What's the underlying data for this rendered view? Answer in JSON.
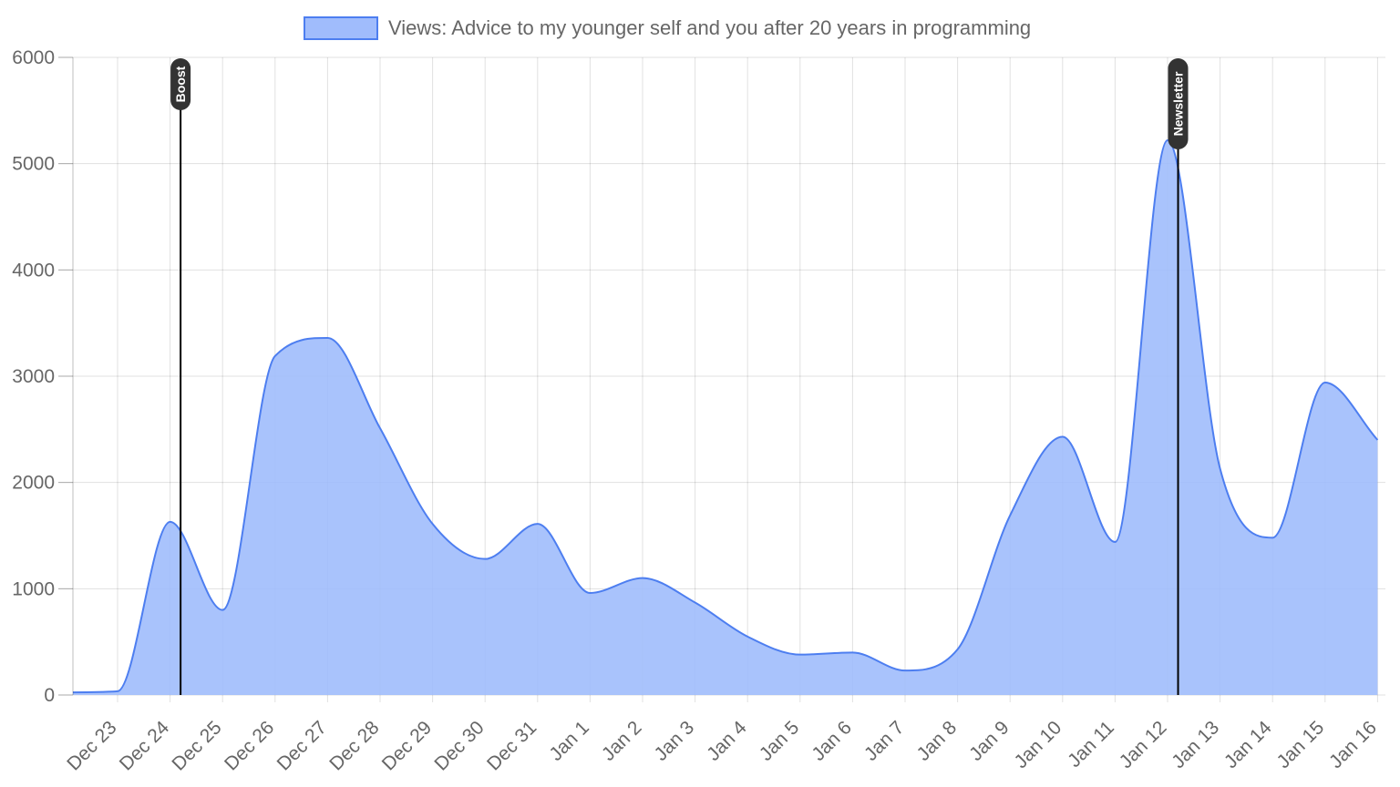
{
  "chart_data": {
    "type": "area",
    "title": "",
    "xlabel": "",
    "ylabel": "",
    "ylim": [
      0,
      6000
    ],
    "yticks": [
      0,
      1000,
      2000,
      3000,
      4000,
      5000,
      6000
    ],
    "grid": true,
    "legend_position": "top",
    "categories": [
      "Dec 23",
      "Dec 24",
      "Dec 25",
      "Dec 26",
      "Dec 27",
      "Dec 28",
      "Dec 29",
      "Dec 30",
      "Dec 31",
      "Jan 1",
      "Jan 2",
      "Jan 3",
      "Jan 4",
      "Jan 5",
      "Jan 6",
      "Jan 7",
      "Jan 8",
      "Jan 9",
      "Jan 10",
      "Jan 11",
      "Jan 12",
      "Jan 13",
      "Jan 14",
      "Jan 15",
      "Jan 16"
    ],
    "series": [
      {
        "name": "Views: Advice to my younger self and you after 20 years in programming",
        "color": "#4d7ef0",
        "fill": "#a0bcfc",
        "points": [
          {
            "x": "Dec 22",
            "y": 25
          },
          {
            "x": "Dec 23",
            "y": 35
          },
          {
            "x": "Dec 24",
            "y": 1630
          },
          {
            "x": "Dec 25",
            "y": 800
          },
          {
            "x": "Dec 26",
            "y": 3190
          },
          {
            "x": "Dec 27",
            "y": 3360
          },
          {
            "x": "Dec 28",
            "y": 2510
          },
          {
            "x": "Dec 29",
            "y": 1610
          },
          {
            "x": "Dec 30",
            "y": 1280
          },
          {
            "x": "Dec 31",
            "y": 1610
          },
          {
            "x": "Jan 1",
            "y": 960
          },
          {
            "x": "Jan 2",
            "y": 1100
          },
          {
            "x": "Jan 3",
            "y": 870
          },
          {
            "x": "Jan 4",
            "y": 550
          },
          {
            "x": "Jan 5",
            "y": 380
          },
          {
            "x": "Jan 6",
            "y": 400
          },
          {
            "x": "Jan 7",
            "y": 230
          },
          {
            "x": "Jan 8",
            "y": 430
          },
          {
            "x": "Jan 9",
            "y": 1690
          },
          {
            "x": "Jan 10",
            "y": 2430
          },
          {
            "x": "Jan 11",
            "y": 1440
          },
          {
            "x": "Jan 12",
            "y": 5220
          },
          {
            "x": "Jan 13",
            "y": 2130
          },
          {
            "x": "Jan 14",
            "y": 1480
          },
          {
            "x": "Jan 15",
            "y": 2940
          },
          {
            "x": "Jan 16",
            "y": 2400
          }
        ]
      }
    ],
    "annotations": [
      {
        "label": "Boost",
        "x": "Dec 24",
        "offset_days": 0.2
      },
      {
        "label": "Newsletter",
        "x": "Jan 12",
        "offset_days": 0.2
      }
    ]
  }
}
